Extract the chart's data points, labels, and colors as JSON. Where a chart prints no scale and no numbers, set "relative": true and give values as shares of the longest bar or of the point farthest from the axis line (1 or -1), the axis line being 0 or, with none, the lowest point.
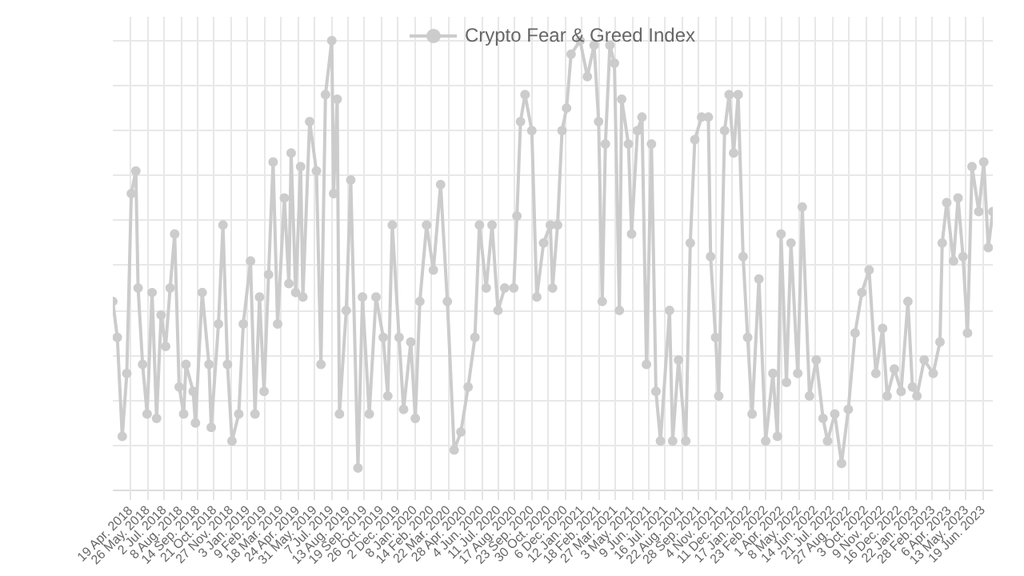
{
  "chart_data": {
    "type": "line",
    "relative": true,
    "legend": "top",
    "grid": true,
    "marker": "circle",
    "line_style": "solid",
    "xlim": [
      "2018-03-10",
      "2023-07-11"
    ],
    "xticks": [
      {
        "value": "2018-04-19",
        "label": "19 Apr. 2018"
      },
      {
        "value": "2018-05-26",
        "label": "26 May. 2018"
      },
      {
        "value": "2018-07-02",
        "label": "2 Jul. 2018"
      },
      {
        "value": "2018-08-08",
        "label": "8 Aug. 2018"
      },
      {
        "value": "2018-09-14",
        "label": "14 Sep. 2018"
      },
      {
        "value": "2018-10-21",
        "label": "21 Oct. 2018"
      },
      {
        "value": "2018-11-27",
        "label": "27 Nov. 2018"
      },
      {
        "value": "2019-01-03",
        "label": "3 Jan. 2019"
      },
      {
        "value": "2019-02-09",
        "label": "9 Feb. 2019"
      },
      {
        "value": "2019-03-18",
        "label": "18 Mar. 2019"
      },
      {
        "value": "2019-04-24",
        "label": "24 Apr. 2019"
      },
      {
        "value": "2019-05-31",
        "label": "31 May. 2019"
      },
      {
        "value": "2019-07-07",
        "label": "7 Jul. 2019"
      },
      {
        "value": "2019-08-13",
        "label": "13 Aug. 2019"
      },
      {
        "value": "2019-09-19",
        "label": "19 Sep. 2019"
      },
      {
        "value": "2019-10-26",
        "label": "26 Oct. 2019"
      },
      {
        "value": "2019-12-02",
        "label": "2 Dec. 2019"
      },
      {
        "value": "2020-01-08",
        "label": "8 Jan. 2020"
      },
      {
        "value": "2020-02-14",
        "label": "14 Feb. 2020"
      },
      {
        "value": "2020-03-22",
        "label": "22 Mar. 2020"
      },
      {
        "value": "2020-04-28",
        "label": "28 Apr. 2020"
      },
      {
        "value": "2020-06-04",
        "label": "4 Jun. 2020"
      },
      {
        "value": "2020-07-11",
        "label": "11 Jul. 2020"
      },
      {
        "value": "2020-08-17",
        "label": "17 Aug. 2020"
      },
      {
        "value": "2020-09-23",
        "label": "23 Sep. 2020"
      },
      {
        "value": "2020-10-30",
        "label": "30 Oct. 2020"
      },
      {
        "value": "2020-12-06",
        "label": "6 Dec. 2020"
      },
      {
        "value": "2021-01-12",
        "label": "12 Jan. 2021"
      },
      {
        "value": "2021-02-18",
        "label": "18 Feb. 2021"
      },
      {
        "value": "2021-03-27",
        "label": "27 Mar. 2021"
      },
      {
        "value": "2021-05-03",
        "label": "3 May. 2021"
      },
      {
        "value": "2021-06-09",
        "label": "9 Jun. 2021"
      },
      {
        "value": "2021-07-16",
        "label": "16 Jul. 2021"
      },
      {
        "value": "2021-08-22",
        "label": "22 Aug. 2021"
      },
      {
        "value": "2021-09-28",
        "label": "28 Sep. 2021"
      },
      {
        "value": "2021-11-04",
        "label": "4 Nov. 2021"
      },
      {
        "value": "2021-12-11",
        "label": "11 Dec. 2021"
      },
      {
        "value": "2022-01-17",
        "label": "17 Jan. 2022"
      },
      {
        "value": "2022-02-23",
        "label": "23 Feb. 2022"
      },
      {
        "value": "2022-04-01",
        "label": "1 Apr. 2022"
      },
      {
        "value": "2022-05-08",
        "label": "8 May. 2022"
      },
      {
        "value": "2022-06-14",
        "label": "14 Jun. 2022"
      },
      {
        "value": "2022-07-21",
        "label": "21 Jul. 2022"
      },
      {
        "value": "2022-08-27",
        "label": "27 Aug. 2022"
      },
      {
        "value": "2022-10-03",
        "label": "3 Oct. 2022"
      },
      {
        "value": "2022-11-09",
        "label": "9 Nov. 2022"
      },
      {
        "value": "2022-12-16",
        "label": "16 Dec. 2022"
      },
      {
        "value": "2023-01-22",
        "label": "22 Jan. 2023"
      },
      {
        "value": "2023-02-28",
        "label": "28 Feb. 2023"
      },
      {
        "value": "2023-04-06",
        "label": "6 Apr. 2023"
      },
      {
        "value": "2023-05-13",
        "label": "13 May. 2023"
      },
      {
        "value": "2023-06-19",
        "label": "19 Jun. 2023"
      }
    ],
    "series": [
      {
        "name": "Crypto Fear & Greed Index",
        "color": "#cccccc",
        "x": [
          "2018-03-10",
          "2018-03-20",
          "2018-03-31",
          "2018-04-10",
          "2018-04-20",
          "2018-04-30",
          "2018-05-05",
          "2018-05-15",
          "2018-05-25",
          "2018-06-05",
          "2018-06-15",
          "2018-06-25",
          "2018-07-05",
          "2018-07-15",
          "2018-07-25",
          "2018-08-04",
          "2018-08-14",
          "2018-08-19",
          "2018-09-04",
          "2018-09-09",
          "2018-09-24",
          "2018-10-09",
          "2018-10-14",
          "2018-10-30",
          "2018-11-09",
          "2018-11-19",
          "2018-11-29",
          "2018-12-14",
          "2018-12-24",
          "2019-01-09",
          "2019-01-19",
          "2019-01-29",
          "2019-02-08",
          "2019-02-18",
          "2019-02-28",
          "2019-03-10",
          "2019-03-25",
          "2019-04-04",
          "2019-04-09",
          "2019-04-19",
          "2019-04-30",
          "2019-05-05",
          "2019-05-20",
          "2019-06-04",
          "2019-06-14",
          "2019-06-24",
          "2019-07-08",
          "2019-07-12",
          "2019-07-20",
          "2019-07-25",
          "2019-08-09",
          "2019-08-19",
          "2019-09-04",
          "2019-09-14",
          "2019-09-29",
          "2019-10-14",
          "2019-10-30",
          "2019-11-09",
          "2019-11-19",
          "2019-12-04",
          "2019-12-14",
          "2019-12-30",
          "2020-01-09",
          "2020-01-19",
          "2020-02-03",
          "2020-02-18",
          "2020-03-05",
          "2020-03-20",
          "2020-04-04",
          "2020-04-19",
          "2020-05-05",
          "2020-05-20",
          "2020-05-30",
          "2020-06-14",
          "2020-06-27",
          "2020-07-10",
          "2020-07-25",
          "2020-08-14",
          "2020-08-21",
          "2020-08-29",
          "2020-09-08",
          "2020-09-23",
          "2020-10-04",
          "2020-10-19",
          "2020-11-03",
          "2020-11-08",
          "2020-11-19",
          "2020-11-29",
          "2020-12-09",
          "2020-12-19",
          "2021-01-08",
          "2021-01-24",
          "2021-02-08",
          "2021-02-18",
          "2021-02-26",
          "2021-03-05",
          "2021-03-15",
          "2021-03-25",
          "2021-04-05",
          "2021-04-10",
          "2021-04-25",
          "2021-05-02",
          "2021-05-15",
          "2021-05-25",
          "2021-06-04",
          "2021-06-15",
          "2021-06-25",
          "2021-07-05",
          "2021-07-25",
          "2021-08-01",
          "2021-08-14",
          "2021-08-30",
          "2021-09-09",
          "2021-09-19",
          "2021-10-04",
          "2021-10-19",
          "2021-10-24",
          "2021-11-04",
          "2021-11-11",
          "2021-11-24",
          "2021-12-04",
          "2021-12-14",
          "2021-12-24",
          "2022-01-04",
          "2022-01-14",
          "2022-01-24",
          "2022-02-08",
          "2022-02-23",
          "2022-03-11",
          "2022-03-21",
          "2022-03-29",
          "2022-04-10",
          "2022-04-20",
          "2022-05-05",
          "2022-05-15",
          "2022-05-31",
          "2022-06-15",
          "2022-06-30",
          "2022-07-10",
          "2022-07-26",
          "2022-08-10",
          "2022-08-25",
          "2022-09-09",
          "2022-09-24",
          "2022-10-10",
          "2022-10-25",
          "2022-11-09",
          "2022-11-19",
          "2022-12-05",
          "2022-12-20",
          "2023-01-04",
          "2023-01-14",
          "2023-01-24",
          "2023-02-09",
          "2023-03-01",
          "2023-03-16",
          "2023-03-21",
          "2023-03-31",
          "2023-04-15",
          "2023-04-25",
          "2023-05-06",
          "2023-05-16",
          "2023-05-26",
          "2023-06-10",
          "2023-06-21",
          "2023-07-01",
          "2023-07-11"
        ],
        "values": [
          0.42,
          0.34,
          0.12,
          0.26,
          0.66,
          0.71,
          0.45,
          0.28,
          0.17,
          0.44,
          0.16,
          0.39,
          0.32,
          0.45,
          0.57,
          0.23,
          0.17,
          0.28,
          0.22,
          0.15,
          0.44,
          0.28,
          0.14,
          0.37,
          0.59,
          0.28,
          0.11,
          0.17,
          0.37,
          0.51,
          0.17,
          0.43,
          0.22,
          0.48,
          0.73,
          0.37,
          0.65,
          0.46,
          0.75,
          0.44,
          0.72,
          0.43,
          0.82,
          0.71,
          0.28,
          0.88,
          1,
          0.66,
          0.87,
          0.17,
          0.4,
          0.69,
          0.05,
          0.43,
          0.17,
          0.43,
          0.34,
          0.21,
          0.59,
          0.34,
          0.18,
          0.33,
          0.16,
          0.42,
          0.59,
          0.49,
          0.68,
          0.42,
          0.09,
          0.13,
          0.23,
          0.34,
          0.59,
          0.45,
          0.59,
          0.4,
          0.45,
          0.45,
          0.61,
          0.82,
          0.88,
          0.8,
          0.43,
          0.55,
          0.59,
          0.45,
          0.59,
          0.8,
          0.85,
          0.97,
          1,
          0.92,
          0.99,
          0.82,
          0.42,
          0.77,
          0.99,
          0.95,
          0.4,
          0.87,
          0.77,
          0.57,
          0.8,
          0.83,
          0.28,
          0.77,
          0.22,
          0.11,
          0.4,
          0.11,
          0.29,
          0.11,
          0.55,
          0.78,
          0.83,
          0.83,
          0.52,
          0.34,
          0.21,
          0.8,
          0.88,
          0.75,
          0.88,
          0.52,
          0.34,
          0.17,
          0.47,
          0.11,
          0.26,
          0.12,
          0.57,
          0.24,
          0.55,
          0.26,
          0.63,
          0.21,
          0.29,
          0.16,
          0.11,
          0.17,
          0.06,
          0.18,
          0.35,
          0.44,
          0.49,
          0.26,
          0.36,
          0.21,
          0.27,
          0.22,
          0.42,
          0.23,
          0.21,
          0.29,
          0.26,
          0.33,
          0.55,
          0.64,
          0.51,
          0.65,
          0.52,
          0.35,
          0.72,
          0.62,
          0.73,
          0.54,
          0.62
        ]
      }
    ]
  }
}
